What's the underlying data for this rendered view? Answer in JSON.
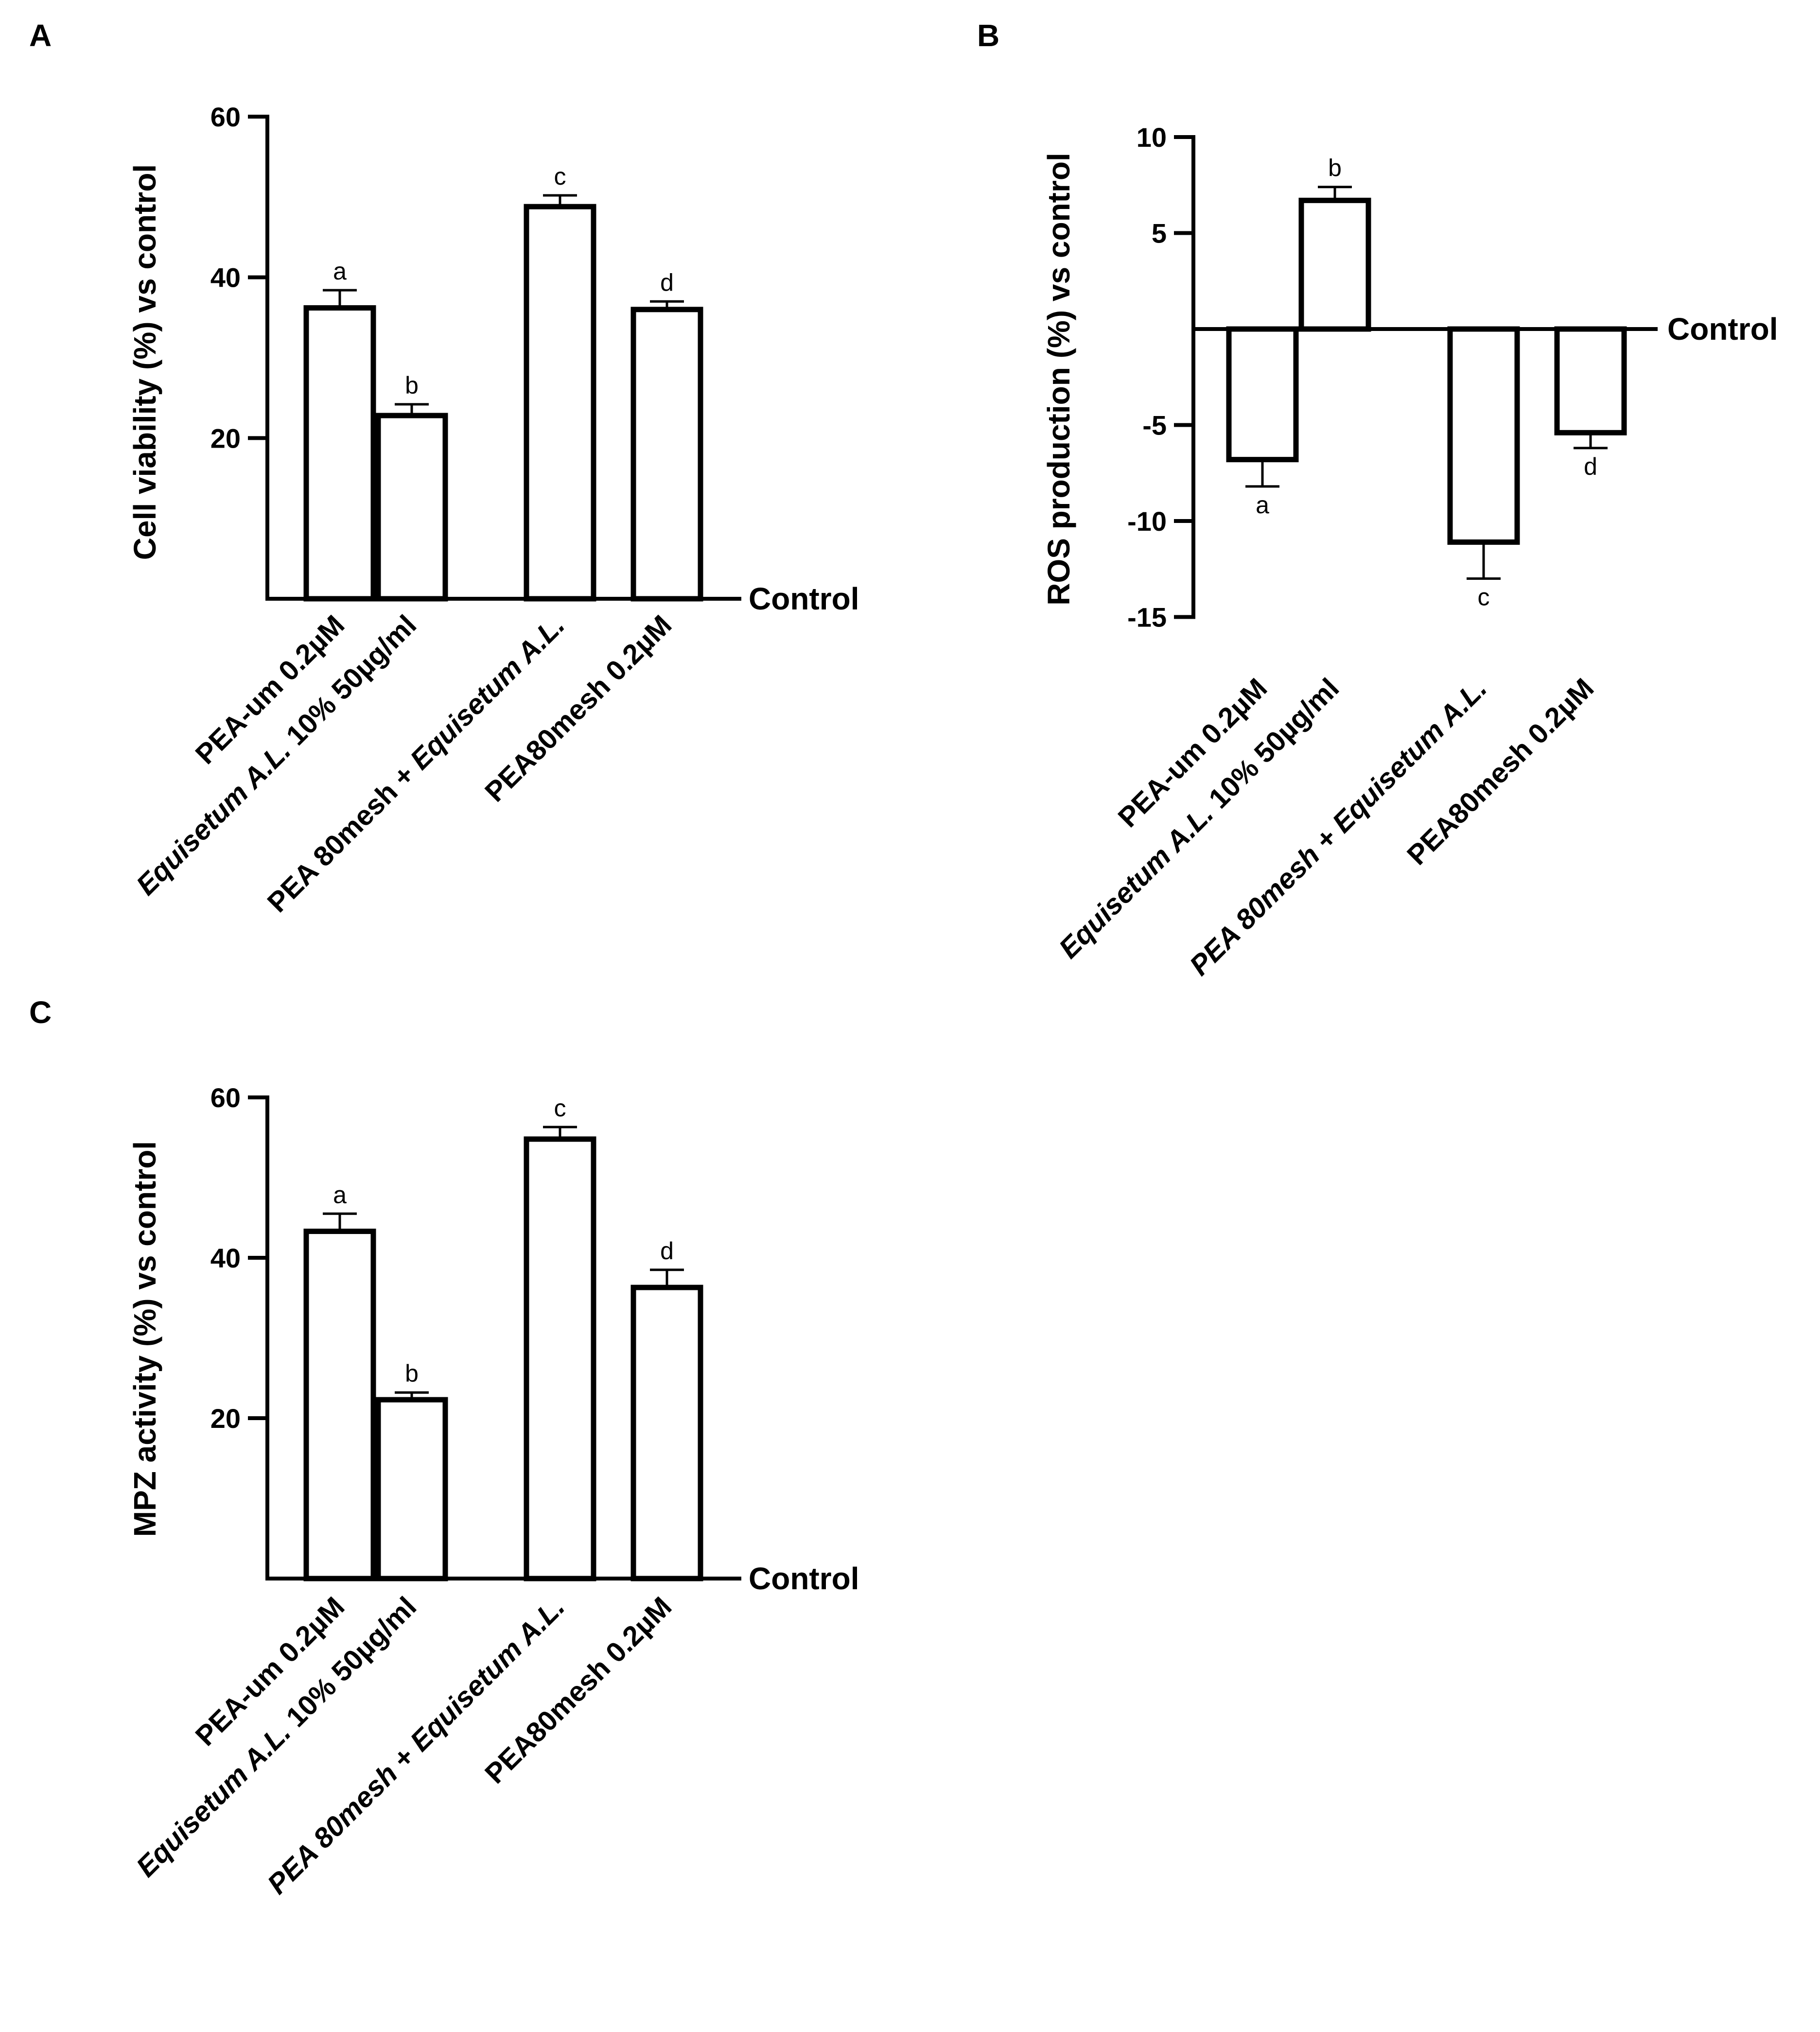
{
  "chart_data": [
    {
      "panel": "A",
      "type": "bar",
      "categories": [
        [
          {
            "t": "PEA-um 0.2µM",
            "i": false
          }
        ],
        [
          {
            "t": "Equisetum A.L.",
            "i": true
          },
          {
            "t": " 10% 50µg/ml",
            "i": false
          }
        ],
        [
          {
            "t": "PEA 80mesh + ",
            "i": false
          },
          {
            "t": "Equisetum A.L.",
            "i": true
          }
        ],
        [
          {
            "t": "PEA80mesh 0.2µM",
            "i": false
          }
        ]
      ],
      "values": [
        36.2,
        22.8,
        48.8,
        36.0
      ],
      "errors": [
        2.2,
        1.4,
        1.4,
        1.0
      ],
      "significance": [
        "a",
        "b",
        "c",
        "d"
      ],
      "ylabel": "Cell viability (%) vs control",
      "baseline_label": "Control",
      "ylim": [
        0,
        60
      ],
      "yticks": [
        20,
        40,
        60
      ]
    },
    {
      "panel": "B",
      "type": "bar",
      "categories": [
        [
          {
            "t": "PEA-um 0.2µM",
            "i": false
          }
        ],
        [
          {
            "t": "Equisetum A.L.",
            "i": true
          },
          {
            "t": " 10% 50µg/ml",
            "i": false
          }
        ],
        [
          {
            "t": "PEA 80mesh + Equisetum A.L.",
            "i": true
          }
        ],
        [
          {
            "t": "PEA80mesh 0.2µM",
            "i": false
          }
        ]
      ],
      "values": [
        -6.8,
        6.7,
        -11.1,
        -5.4
      ],
      "errors": [
        1.4,
        0.7,
        1.9,
        0.8
      ],
      "significance": [
        "a",
        "b",
        "c",
        "d"
      ],
      "ylabel": "ROS production (%) vs control",
      "baseline_label": "Control",
      "ylim": [
        -15,
        10
      ],
      "yticks": [
        10,
        5,
        -5,
        -10,
        -15
      ]
    },
    {
      "panel": "C",
      "type": "bar",
      "categories": [
        [
          {
            "t": "PEA-um 0.2µM",
            "i": false
          }
        ],
        [
          {
            "t": "Equisetum A.L.",
            "i": true
          },
          {
            "t": " 10% 50µg/ml",
            "i": false
          }
        ],
        [
          {
            "t": "PEA 80mesh",
            "i": true
          },
          {
            "t": " + ",
            "i": false
          },
          {
            "t": "Equisetum A.L.",
            "i": true
          }
        ],
        [
          {
            "t": "PEA80mesh 0.2µM",
            "i": false
          }
        ]
      ],
      "values": [
        43.3,
        22.3,
        54.8,
        36.3
      ],
      "errors": [
        2.2,
        0.9,
        1.5,
        2.2
      ],
      "significance": [
        "a",
        "b",
        "c",
        "d"
      ],
      "ylabel": "MPZ activity (%) vs control",
      "baseline_label": "Control",
      "ylim": [
        0,
        60
      ],
      "yticks": [
        20,
        40,
        60
      ]
    }
  ]
}
